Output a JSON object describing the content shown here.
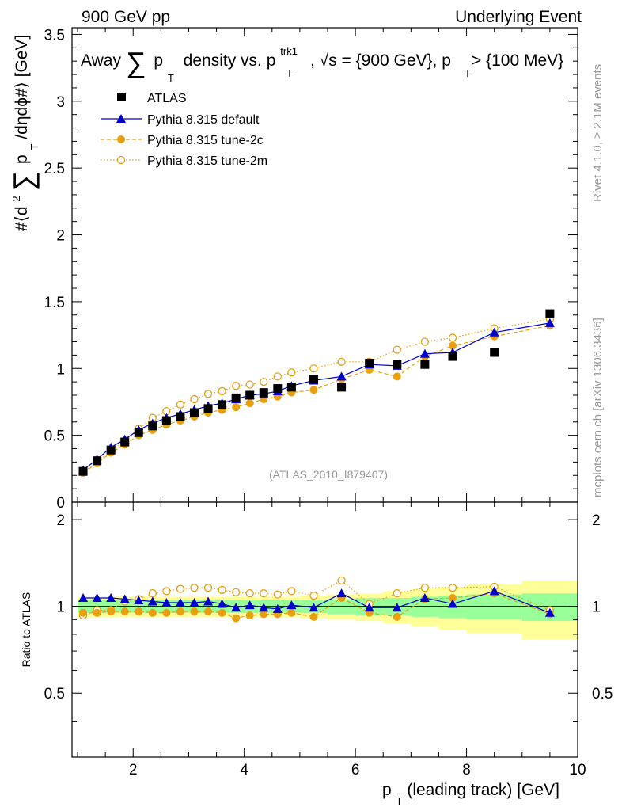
{
  "header": {
    "left": "900 GeV pp",
    "right": "Underlying Event"
  },
  "plot_title": {
    "prefix": "Away",
    "sum_symbol": "∑",
    "p": "p",
    "sub_T": "T",
    "mid": "density vs. p",
    "sup_trk1": "trk1",
    "tail_a": ", √s = {900 GeV}, p",
    "tail_b": " > {100 MeV}"
  },
  "side_labels": {
    "rivet": "Rivet 4.1.0, ≥ 2.1M events",
    "mcplots": "mcplots.cern.ch [arXiv:1306.3436]"
  },
  "analysis_label": "(ATLAS_2010_I879407)",
  "y_label": {
    "pre": "#⟨d",
    "sup2": "2",
    "sum_symbol": "∑",
    "p": "p",
    "sub_T": "T",
    "tail": " /dηdϕ#⟩ [GeV]"
  },
  "ratio_y_label": "Ratio to ATLAS",
  "x_label": {
    "p": "p",
    "sub_T": "T",
    "tail": " (leading track) [GeV]"
  },
  "colors": {
    "atlas": "#000000",
    "default": "#0000cc",
    "tune2c": "#e8a010",
    "tune2m": "#e8a010",
    "band_inner": "#99ff99",
    "band_outer": "#ffff99"
  },
  "chart_data": {
    "type": "scatter",
    "title": "Away ∑pT density vs. pT trk1, √s = {900 GeV}, pT > {100 MeV}",
    "xlabel": "pT (leading track) [GeV]",
    "ylabel": "#⟨d² ∑ pT /dηdϕ#⟩ [GeV]",
    "xlim": [
      0.9,
      10
    ],
    "ylim": [
      0,
      3.55
    ],
    "ratio_ylim": [
      0.3,
      2.3
    ],
    "x_ticks": [
      2,
      4,
      6,
      8,
      10
    ],
    "x_tick_labels": [
      "2",
      "4",
      "6",
      "8",
      "10"
    ],
    "y_ticks": [
      0,
      0.5,
      1,
      1.5,
      2,
      2.5,
      3,
      3.5
    ],
    "y_tick_labels": [
      "0",
      "0.5",
      "1",
      "1.5",
      "2",
      "2.5",
      "3",
      "3.5"
    ],
    "ratio_y_ticks": [
      0.5,
      1,
      2
    ],
    "ratio_y_tick_labels": [
      "0.5",
      "1",
      "2"
    ],
    "x": [
      1.1,
      1.35,
      1.6,
      1.85,
      2.1,
      2.35,
      2.6,
      2.85,
      3.1,
      3.35,
      3.6,
      3.85,
      4.1,
      4.35,
      4.6,
      4.85,
      5.25,
      5.75,
      6.25,
      6.75,
      7.25,
      7.75,
      8.5,
      9.5
    ],
    "x_edges": [
      1.0,
      1.25,
      1.5,
      1.75,
      2.0,
      2.25,
      2.5,
      2.75,
      3.0,
      3.25,
      3.5,
      3.75,
      4.0,
      4.25,
      4.5,
      4.75,
      5.0,
      5.5,
      6.0,
      6.5,
      7.0,
      7.5,
      8.0,
      9.0,
      10.0
    ],
    "band_inner_halfwidth": [
      0.05,
      0.05,
      0.05,
      0.05,
      0.05,
      0.05,
      0.05,
      0.05,
      0.05,
      0.05,
      0.05,
      0.05,
      0.05,
      0.05,
      0.05,
      0.05,
      0.05,
      0.06,
      0.07,
      0.07,
      0.08,
      0.09,
      0.1,
      0.11
    ],
    "band_outer_halfwidth": [
      0.08,
      0.08,
      0.08,
      0.08,
      0.08,
      0.08,
      0.08,
      0.08,
      0.08,
      0.08,
      0.08,
      0.08,
      0.08,
      0.08,
      0.08,
      0.08,
      0.09,
      0.1,
      0.11,
      0.13,
      0.15,
      0.17,
      0.19,
      0.23
    ],
    "series": [
      {
        "name": "ATLAS",
        "style": "square",
        "values": [
          0.23,
          0.31,
          0.39,
          0.45,
          0.52,
          0.57,
          0.61,
          0.64,
          0.67,
          0.7,
          0.73,
          0.78,
          0.8,
          0.82,
          0.85,
          0.86,
          0.92,
          0.86,
          1.04,
          1.03,
          1.03,
          1.09,
          1.12,
          1.41
        ]
      },
      {
        "name": "Pythia 8.315 default",
        "style": "triangle-line",
        "values": [
          0.24,
          0.32,
          0.41,
          0.47,
          0.54,
          0.59,
          0.63,
          0.66,
          0.69,
          0.72,
          0.74,
          0.77,
          0.8,
          0.81,
          0.83,
          0.87,
          0.91,
          0.94,
          1.03,
          1.02,
          1.11,
          1.12,
          1.27,
          1.34
        ]
      },
      {
        "name": "Pythia 8.315 tune-2c",
        "style": "dot-dashed",
        "values": [
          0.22,
          0.29,
          0.37,
          0.43,
          0.5,
          0.54,
          0.58,
          0.61,
          0.64,
          0.67,
          0.69,
          0.71,
          0.74,
          0.77,
          0.79,
          0.82,
          0.84,
          0.92,
          0.99,
          0.94,
          1.09,
          1.17,
          1.24,
          1.32
        ]
      },
      {
        "name": "Pythia 8.315 tune-2m",
        "style": "open-circle-dotted",
        "values": [
          0.22,
          0.3,
          0.38,
          0.46,
          0.55,
          0.63,
          0.68,
          0.73,
          0.77,
          0.81,
          0.83,
          0.87,
          0.88,
          0.9,
          0.94,
          0.97,
          1.0,
          1.05,
          1.05,
          1.14,
          1.2,
          1.23,
          1.3,
          1.37
        ]
      }
    ],
    "ratio": [
      {
        "name": "Pythia 8.315 default",
        "values": [
          1.07,
          1.07,
          1.07,
          1.06,
          1.05,
          1.04,
          1.03,
          1.03,
          1.03,
          1.04,
          1.02,
          0.99,
          1.01,
          0.99,
          0.98,
          1.01,
          0.99,
          1.11,
          0.99,
          0.99,
          1.07,
          1.02,
          1.13,
          0.95
        ]
      },
      {
        "name": "Pythia 8.315 tune-2c",
        "values": [
          0.95,
          0.95,
          0.96,
          0.96,
          0.96,
          0.95,
          0.95,
          0.96,
          0.96,
          0.96,
          0.95,
          0.91,
          0.93,
          0.94,
          0.94,
          0.95,
          0.92,
          1.07,
          0.95,
          0.92,
          1.06,
          1.07,
          1.11,
          0.94
        ]
      },
      {
        "name": "Pythia 8.315 tune-2m",
        "values": [
          0.93,
          0.97,
          0.97,
          1.04,
          1.06,
          1.11,
          1.13,
          1.15,
          1.16,
          1.16,
          1.14,
          1.12,
          1.11,
          1.11,
          1.1,
          1.13,
          1.09,
          1.23,
          1.02,
          1.11,
          1.16,
          1.16,
          1.17,
          0.97
        ]
      }
    ],
    "legend_position": "top-left"
  }
}
